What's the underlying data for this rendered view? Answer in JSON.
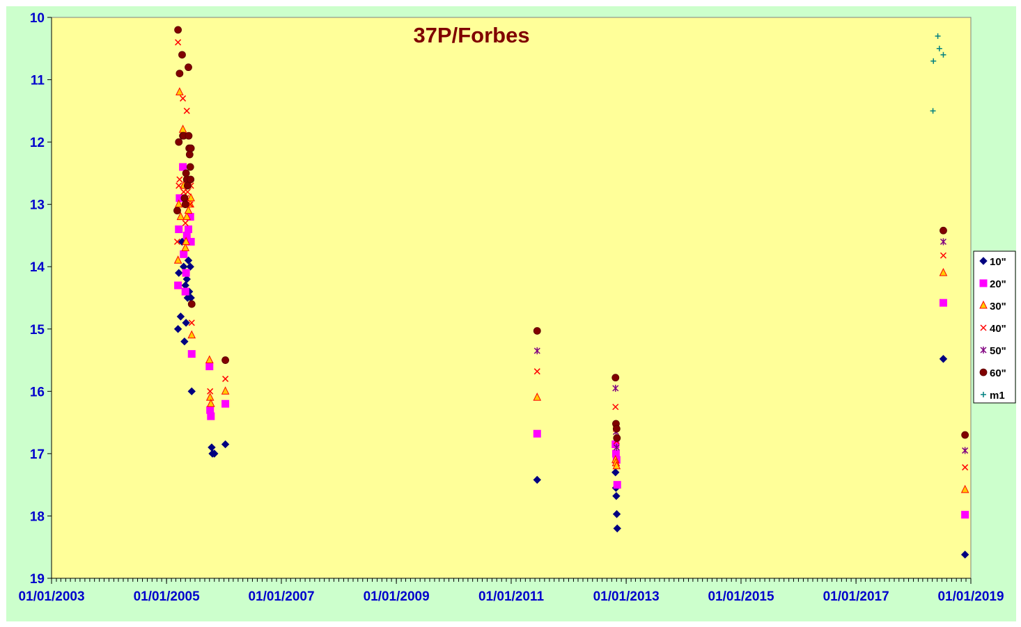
{
  "chart_data": {
    "type": "scatter",
    "title": "37P/Forbes",
    "xlabel": "",
    "ylabel": "",
    "x_axis": {
      "type": "date",
      "min": "2003-01-01",
      "max": "2019-01-01",
      "tick_labels": [
        "01/01/2003",
        "01/01/2005",
        "01/01/2007",
        "01/01/2009",
        "01/01/2011",
        "01/01/2013",
        "01/01/2015",
        "01/01/2017",
        "01/01/2019"
      ]
    },
    "y_axis": {
      "min": 10,
      "max": 19,
      "inverted": true,
      "tick_labels": [
        "10",
        "11",
        "12",
        "13",
        "14",
        "15",
        "16",
        "17",
        "18",
        "19"
      ]
    },
    "legend_position": "right",
    "grid": false,
    "colors": {
      "plot_background": "#ffff99",
      "outer_background": "#ccffcc",
      "title": "#7f0000",
      "tick_labels": "#0000cc"
    },
    "series": [
      {
        "name": "10\"",
        "marker": "diamond",
        "color": "#000080",
        "points": [
          [
            "2005-03-15",
            15.0
          ],
          [
            "2005-03-20",
            14.1
          ],
          [
            "2005-04-01",
            14.8
          ],
          [
            "2005-04-10",
            13.6
          ],
          [
            "2005-04-20",
            14.0
          ],
          [
            "2005-04-25",
            15.2
          ],
          [
            "2005-05-01",
            14.3
          ],
          [
            "2005-05-05",
            14.9
          ],
          [
            "2005-05-10",
            14.2
          ],
          [
            "2005-05-15",
            14.5
          ],
          [
            "2005-05-20",
            13.9
          ],
          [
            "2005-05-25",
            14.4
          ],
          [
            "2005-06-01",
            14.0
          ],
          [
            "2005-06-05",
            14.5
          ],
          [
            "2005-06-10",
            16.0
          ],
          [
            "2005-10-15",
            16.9
          ],
          [
            "2005-10-20",
            17.0
          ],
          [
            "2005-11-01",
            17.0
          ],
          [
            "2006-01-10",
            16.85
          ],
          [
            "2011-06-15",
            17.42
          ],
          [
            "2012-10-25",
            17.3
          ],
          [
            "2012-10-28",
            17.55
          ],
          [
            "2012-10-30",
            17.68
          ],
          [
            "2012-11-02",
            17.97
          ],
          [
            "2012-11-05",
            18.2
          ],
          [
            "2018-07-10",
            15.48
          ],
          [
            "2018-11-25",
            18.62
          ]
        ]
      },
      {
        "name": "20\"",
        "marker": "square",
        "color": "#ff00ff",
        "points": [
          [
            "2005-03-15",
            14.3
          ],
          [
            "2005-03-20",
            13.4
          ],
          [
            "2005-03-25",
            12.9
          ],
          [
            "2005-04-15",
            12.4
          ],
          [
            "2005-04-20",
            13.8
          ],
          [
            "2005-05-01",
            14.4
          ],
          [
            "2005-05-05",
            14.1
          ],
          [
            "2005-05-10",
            13.5
          ],
          [
            "2005-05-20",
            13.4
          ],
          [
            "2005-06-01",
            13.2
          ],
          [
            "2005-06-05",
            13.6
          ],
          [
            "2005-06-10",
            15.4
          ],
          [
            "2005-10-01",
            15.6
          ],
          [
            "2005-10-05",
            16.3
          ],
          [
            "2005-10-10",
            16.4
          ],
          [
            "2006-01-10",
            16.2
          ],
          [
            "2011-06-15",
            16.68
          ],
          [
            "2012-10-25",
            16.85
          ],
          [
            "2012-10-28",
            17.0
          ],
          [
            "2012-11-01",
            17.1
          ],
          [
            "2012-11-05",
            17.5
          ],
          [
            "2018-07-10",
            14.58
          ],
          [
            "2018-11-25",
            17.98
          ]
        ]
      },
      {
        "name": "30\"",
        "marker": "triangle",
        "color": "#ff0000",
        "fill": "#ffcc00",
        "points": [
          [
            "2005-03-15",
            13.9
          ],
          [
            "2005-03-20",
            13.0
          ],
          [
            "2005-03-25",
            11.2
          ],
          [
            "2005-04-01",
            13.2
          ],
          [
            "2005-04-15",
            11.8
          ],
          [
            "2005-04-20",
            12.7
          ],
          [
            "2005-05-01",
            13.7
          ],
          [
            "2005-05-05",
            13.6
          ],
          [
            "2005-05-10",
            13.2
          ],
          [
            "2005-05-20",
            13.1
          ],
          [
            "2005-06-01",
            13.0
          ],
          [
            "2005-06-05",
            12.9
          ],
          [
            "2005-06-10",
            15.1
          ],
          [
            "2005-10-01",
            15.5
          ],
          [
            "2005-10-05",
            16.1
          ],
          [
            "2005-10-10",
            16.2
          ],
          [
            "2006-01-10",
            16.0
          ],
          [
            "2011-06-15",
            16.1
          ],
          [
            "2012-10-25",
            17.1
          ],
          [
            "2012-10-28",
            17.15
          ],
          [
            "2012-11-01",
            17.2
          ],
          [
            "2018-07-10",
            14.1
          ],
          [
            "2018-11-25",
            17.58
          ]
        ]
      },
      {
        "name": "40\"",
        "marker": "x",
        "color": "#ff0000",
        "points": [
          [
            "2005-03-10",
            13.6
          ],
          [
            "2005-03-15",
            10.4
          ],
          [
            "2005-03-20",
            12.7
          ],
          [
            "2005-03-25",
            12.6
          ],
          [
            "2005-04-15",
            11.3
          ],
          [
            "2005-04-20",
            12.8
          ],
          [
            "2005-05-01",
            13.3
          ],
          [
            "2005-05-05",
            12.9
          ],
          [
            "2005-05-10",
            11.5
          ],
          [
            "2005-05-15",
            12.8
          ],
          [
            "2005-05-20",
            12.7
          ],
          [
            "2005-06-01",
            13.0
          ],
          [
            "2005-06-05",
            12.7
          ],
          [
            "2005-06-10",
            14.9
          ],
          [
            "2005-10-05",
            16.0
          ],
          [
            "2006-01-10",
            15.8
          ],
          [
            "2011-06-15",
            15.68
          ],
          [
            "2012-10-25",
            16.25
          ],
          [
            "2012-10-28",
            16.6
          ],
          [
            "2012-11-01",
            16.8
          ],
          [
            "2018-07-10",
            13.82
          ],
          [
            "2018-11-25",
            17.22
          ]
        ]
      },
      {
        "name": "50\"",
        "marker": "star",
        "color": "#800080",
        "points": [
          [
            "2011-06-15",
            15.35
          ],
          [
            "2012-10-25",
            15.95
          ],
          [
            "2012-10-28",
            16.65
          ],
          [
            "2012-11-01",
            16.9
          ],
          [
            "2018-07-10",
            13.6
          ],
          [
            "2018-11-25",
            16.95
          ]
        ]
      },
      {
        "name": "60\"",
        "marker": "circle",
        "color": "#800000",
        "points": [
          [
            "2005-03-10",
            13.1
          ],
          [
            "2005-03-15",
            10.2
          ],
          [
            "2005-03-20",
            12.0
          ],
          [
            "2005-03-25",
            10.9
          ],
          [
            "2005-04-10",
            10.6
          ],
          [
            "2005-04-15",
            11.9
          ],
          [
            "2005-04-20",
            11.9
          ],
          [
            "2005-04-25",
            12.9
          ],
          [
            "2005-05-01",
            13.0
          ],
          [
            "2005-05-05",
            12.5
          ],
          [
            "2005-05-10",
            12.6
          ],
          [
            "2005-05-15",
            12.7
          ],
          [
            "2005-05-20",
            10.8
          ],
          [
            "2005-05-22",
            11.9
          ],
          [
            "2005-05-25",
            12.1
          ],
          [
            "2005-05-28",
            12.2
          ],
          [
            "2005-06-01",
            12.4
          ],
          [
            "2005-06-03",
            12.6
          ],
          [
            "2005-06-05",
            12.1
          ],
          [
            "2005-06-10",
            14.6
          ],
          [
            "2006-01-10",
            15.5
          ],
          [
            "2011-06-15",
            15.03
          ],
          [
            "2012-10-25",
            15.78
          ],
          [
            "2012-10-28",
            16.52
          ],
          [
            "2012-11-01",
            16.6
          ],
          [
            "2012-11-03",
            16.75
          ],
          [
            "2018-07-10",
            13.42
          ],
          [
            "2018-11-25",
            16.7
          ]
        ]
      },
      {
        "name": "m1",
        "marker": "plus",
        "color": "#008080",
        "points": [
          [
            "2018-05-05",
            11.5
          ],
          [
            "2018-05-08",
            10.7
          ],
          [
            "2018-06-05",
            10.3
          ],
          [
            "2018-06-15",
            10.5
          ],
          [
            "2018-07-10",
            10.6
          ]
        ]
      }
    ]
  }
}
